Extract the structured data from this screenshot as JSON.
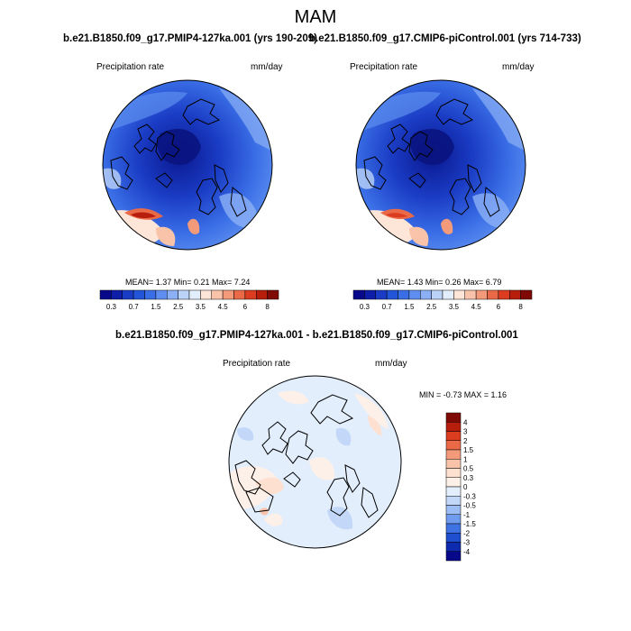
{
  "figure": {
    "title": "MAM",
    "difference_title": "b.e21.B1850.f09_g17.PMIP4-127ka.001 - b.e21.B1850.f09_g17.CMIP6-piControl.001"
  },
  "panels": [
    {
      "case_title": "b.e21.B1850.f09_g17.PMIP4-127ka.001 (yrs 190-209)",
      "variable": "Precipitation rate",
      "units": "mm/day",
      "stats_text": "MEAN=   1.37  Min=   0.21  Max=   7.24"
    },
    {
      "case_title": "b.e21.B1850.f09_g17.CMIP6-piControl.001 (yrs 714-733)",
      "variable": "Precipitation rate",
      "units": "mm/day",
      "stats_text": "MEAN=   1.43  Min=   0.26  Max=   6.79"
    },
    {
      "variable": "Precipitation rate",
      "units": "mm/day",
      "stats_text": "MIN =  -0.73 MAX =   1.16"
    }
  ],
  "chart_data": [
    {
      "type": "heatmap",
      "projection": "north-polar-stereographic",
      "title": "b.e21.B1850.f09_g17.PMIP4-127ka.001 (yrs 190-209)",
      "variable": "Precipitation rate",
      "units": "mm/day",
      "mean": 1.37,
      "min": 0.21,
      "max": 7.24,
      "colorbar_levels": [
        0.3,
        0.5,
        0.7,
        1,
        1.5,
        2,
        2.5,
        3,
        3.5,
        4,
        4.5,
        5,
        6,
        7,
        8
      ],
      "colorbar_tick_labels": [
        "0.3",
        "0.7",
        "1.5",
        "2.5",
        "3.5",
        "4.5",
        "6",
        "8"
      ],
      "colorbar_colors": [
        "#08088a",
        "#0e1ea8",
        "#1a3cc4",
        "#2255d8",
        "#3a6ee6",
        "#5d8ef0",
        "#8cb0f5",
        "#bcd3f8",
        "#e3eefc",
        "#fde6d8",
        "#f9c3aa",
        "#f39a7a",
        "#ea6a48",
        "#dc3c1f",
        "#b81e0c",
        "#7f0a05"
      ]
    },
    {
      "type": "heatmap",
      "projection": "north-polar-stereographic",
      "title": "b.e21.B1850.f09_g17.CMIP6-piControl.001 (yrs 714-733)",
      "variable": "Precipitation rate",
      "units": "mm/day",
      "mean": 1.43,
      "min": 0.26,
      "max": 6.79,
      "colorbar_levels": [
        0.3,
        0.5,
        0.7,
        1,
        1.5,
        2,
        2.5,
        3,
        3.5,
        4,
        4.5,
        5,
        6,
        7,
        8
      ],
      "colorbar_tick_labels": [
        "0.3",
        "0.7",
        "1.5",
        "2.5",
        "3.5",
        "4.5",
        "6",
        "8"
      ],
      "colorbar_colors": [
        "#08088a",
        "#0e1ea8",
        "#1a3cc4",
        "#2255d8",
        "#3a6ee6",
        "#5d8ef0",
        "#8cb0f5",
        "#bcd3f8",
        "#e3eefc",
        "#fde6d8",
        "#f9c3aa",
        "#f39a7a",
        "#ea6a48",
        "#dc3c1f",
        "#b81e0c",
        "#7f0a05"
      ]
    },
    {
      "type": "heatmap",
      "projection": "north-polar-stereographic",
      "title": "b.e21.B1850.f09_g17.PMIP4-127ka.001 - b.e21.B1850.f09_g17.CMIP6-piControl.001",
      "variable": "Precipitation rate",
      "units": "mm/day",
      "min": -0.73,
      "max": 1.16,
      "colorbar_levels": [
        4,
        3,
        2,
        1.5,
        1,
        0.5,
        0.3,
        0,
        -0.3,
        -0.5,
        -1,
        -1.5,
        -2,
        -3,
        -4
      ],
      "colorbar_tick_labels": [
        "4",
        "3",
        "2",
        "1.5",
        "1",
        "0.5",
        "0.3",
        "0",
        "-0.3",
        "-0.5",
        "-1",
        "-1.5",
        "-2",
        "-3",
        "-4"
      ],
      "colorbar_colors": [
        "#7f0a05",
        "#b81e0c",
        "#dc3c1f",
        "#ea6a48",
        "#f39a7a",
        "#f9c3aa",
        "#fde0d0",
        "#fdf0e8",
        "#e3eefc",
        "#c3d8f8",
        "#9dbef4",
        "#6f9cee",
        "#3e73e4",
        "#1f4fcf",
        "#0e2bb0",
        "#08088a"
      ],
      "legend_position": "right"
    }
  ]
}
